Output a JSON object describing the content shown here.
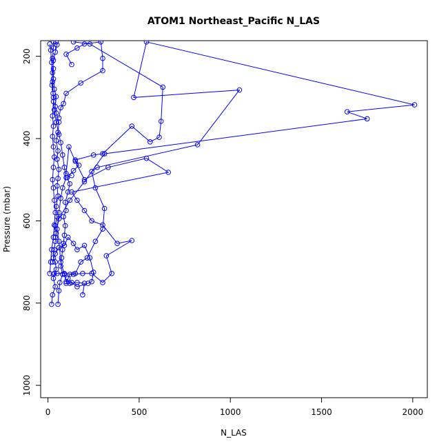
{
  "chart_data": {
    "type": "line",
    "title": "ATOM1 Northeast_Pacific N_LAS",
    "xlabel": "N_LAS",
    "ylabel": "Pressure (mbar)",
    "xlim": [
      -40,
      2080
    ],
    "ylim": [
      1030,
      162
    ],
    "y_reversed": true,
    "x_ticks": [
      0,
      500,
      1000,
      1500,
      2000
    ],
    "y_ticks": [
      200,
      400,
      600,
      800,
      1000
    ],
    "grid": false,
    "legend": "none",
    "color": "#0000ff",
    "marker": "open-circle",
    "series": [
      {
        "values": [
          [
            20,
            803
          ],
          [
            25,
            780
          ],
          [
            40,
            760
          ],
          [
            30,
            740
          ],
          [
            35,
            728
          ],
          [
            45,
            718
          ],
          [
            40,
            700
          ],
          [
            30,
            690
          ],
          [
            35,
            670
          ],
          [
            40,
            650
          ],
          [
            45,
            630
          ],
          [
            40,
            612
          ],
          [
            50,
            590
          ],
          [
            45,
            565
          ],
          [
            55,
            540
          ],
          [
            50,
            515
          ],
          [
            55,
            497
          ],
          [
            60,
            475
          ],
          [
            50,
            450
          ],
          [
            55,
            430
          ],
          [
            45,
            405
          ],
          [
            55,
            385
          ],
          [
            60,
            360
          ],
          [
            45,
            338
          ],
          [
            40,
            322
          ],
          [
            45,
            298
          ],
          [
            35,
            280
          ],
          [
            30,
            255
          ],
          [
            30,
            230
          ],
          [
            25,
            205
          ],
          [
            30,
            180
          ],
          [
            30,
            165
          ]
        ]
      },
      {
        "values": [
          [
            55,
            803
          ],
          [
            60,
            770
          ],
          [
            65,
            750
          ],
          [
            80,
            730
          ],
          [
            70,
            710
          ],
          [
            75,
            690
          ],
          [
            80,
            670
          ],
          [
            85,
            655
          ],
          [
            90,
            635
          ],
          [
            95,
            612
          ],
          [
            85,
            590
          ],
          [
            100,
            575
          ],
          [
            95,
            555
          ],
          [
            110,
            530
          ],
          [
            120,
            510
          ],
          [
            105,
            495
          ],
          [
            140,
            478
          ],
          [
            170,
            465
          ],
          [
            150,
            452
          ],
          [
            250,
            440
          ],
          [
            300,
            437
          ],
          [
            460,
            370
          ],
          [
            560,
            408
          ],
          [
            610,
            397
          ],
          [
            620,
            358
          ],
          [
            630,
            275
          ],
          [
            230,
            170
          ],
          [
            140,
            165
          ]
        ]
      },
      {
        "values": [
          [
            190,
            780
          ],
          [
            200,
            752
          ],
          [
            160,
            750
          ],
          [
            120,
            752
          ],
          [
            100,
            752
          ],
          [
            110,
            740
          ],
          [
            120,
            730
          ],
          [
            150,
            728
          ],
          [
            180,
            700
          ],
          [
            215,
            690
          ],
          [
            260,
            650
          ],
          [
            300,
            620
          ],
          [
            310,
            570
          ],
          [
            260,
            520
          ],
          [
            240,
            480
          ],
          [
            270,
            470
          ],
          [
            820,
            415
          ],
          [
            1050,
            282
          ],
          [
            470,
            300
          ],
          [
            540,
            165
          ],
          [
            2010,
            318
          ],
          [
            1640,
            335
          ],
          [
            1750,
            352
          ],
          [
            310,
            437
          ],
          [
            200,
            505
          ],
          [
            120,
            550
          ],
          [
            60,
            595
          ],
          [
            40,
            640
          ]
        ]
      },
      {
        "values": [
          [
            30,
            730
          ],
          [
            50,
            728
          ],
          [
            90,
            728
          ],
          [
            140,
            730
          ],
          [
            190,
            728
          ],
          [
            240,
            728
          ],
          [
            300,
            750
          ],
          [
            350,
            728
          ],
          [
            320,
            685
          ],
          [
            460,
            648
          ],
          [
            380,
            655
          ],
          [
            300,
            610
          ],
          [
            240,
            600
          ],
          [
            200,
            575
          ],
          [
            160,
            550
          ],
          [
            130,
            530
          ],
          [
            660,
            482
          ],
          [
            540,
            448
          ],
          [
            330,
            470
          ],
          [
            200,
            500
          ],
          [
            150,
            455
          ],
          [
            115,
            420
          ],
          [
            100,
            485
          ],
          [
            130,
            490
          ]
        ]
      },
      {
        "values": [
          [
            25,
            700
          ],
          [
            40,
            680
          ],
          [
            60,
            665
          ],
          [
            90,
            660
          ],
          [
            110,
            640
          ],
          [
            140,
            655
          ],
          [
            160,
            670
          ],
          [
            200,
            660
          ],
          [
            230,
            690
          ],
          [
            250,
            725
          ],
          [
            240,
            748
          ],
          [
            220,
            752
          ],
          [
            160,
            760
          ],
          [
            130,
            750
          ],
          [
            100,
            748
          ],
          [
            90,
            730
          ],
          [
            70,
            700
          ],
          [
            60,
            650
          ],
          [
            50,
            620
          ],
          [
            60,
            580
          ],
          [
            70,
            545
          ],
          [
            80,
            520
          ],
          [
            100,
            495
          ],
          [
            90,
            470
          ],
          [
            80,
            440
          ],
          [
            70,
            410
          ],
          [
            60,
            390
          ],
          [
            45,
            360
          ],
          [
            35,
            330
          ],
          [
            30,
            300
          ],
          [
            25,
            262
          ],
          [
            20,
            215
          ],
          [
            15,
            185
          ],
          [
            10,
            170
          ]
        ]
      },
      {
        "values": [
          [
            10,
            728
          ],
          [
            15,
            700
          ],
          [
            20,
            670
          ],
          [
            30,
            640
          ],
          [
            35,
            610
          ],
          [
            40,
            580
          ],
          [
            35,
            550
          ],
          [
            30,
            520
          ],
          [
            25,
            500
          ],
          [
            30,
            470
          ],
          [
            35,
            445
          ],
          [
            30,
            420
          ],
          [
            25,
            395
          ],
          [
            30,
            370
          ],
          [
            25,
            345
          ],
          [
            30,
            310
          ],
          [
            28,
            290
          ],
          [
            22,
            270
          ],
          [
            25,
            240
          ],
          [
            30,
            210
          ],
          [
            40,
            190
          ],
          [
            50,
            172
          ],
          [
            45,
            165
          ]
        ]
      },
      {
        "values": [
          [
            130,
            220
          ],
          [
            100,
            195
          ],
          [
            160,
            180
          ],
          [
            200,
            170
          ],
          [
            290,
            165
          ],
          [
            300,
            205
          ],
          [
            300,
            235
          ],
          [
            180,
            265
          ],
          [
            100,
            290
          ],
          [
            85,
            315
          ],
          [
            70,
            325
          ],
          [
            60,
            350
          ]
        ]
      }
    ]
  }
}
